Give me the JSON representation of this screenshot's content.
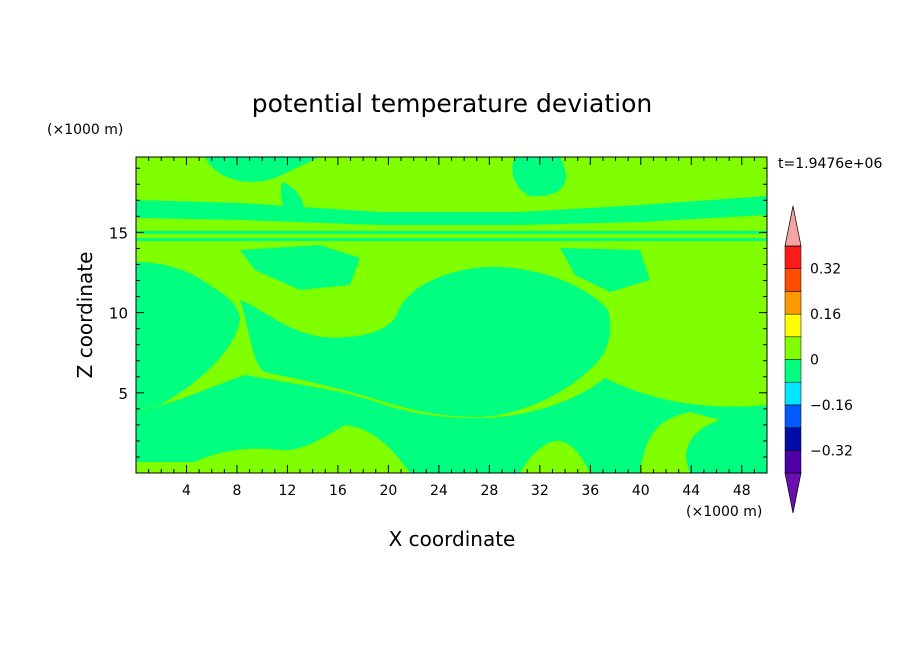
{
  "chart_data": {
    "type": "heatmap",
    "title": "potential temperature deviation",
    "xlabel": "X coordinate",
    "ylabel": "Z coordinate",
    "x_unit_label": "(×1000 m)",
    "y_unit_label": "(×1000 m)",
    "time_label": "t=1.9476e+06",
    "xlim": [
      0,
      50
    ],
    "ylim": [
      0,
      19.7
    ],
    "x_ticks": [
      "4",
      "8",
      "12",
      "16",
      "20",
      "24",
      "28",
      "32",
      "36",
      "40",
      "44",
      "48"
    ],
    "x_tick_values": [
      4,
      8,
      12,
      16,
      20,
      24,
      28,
      32,
      36,
      40,
      44,
      48
    ],
    "y_ticks": [
      "5",
      "10",
      "15"
    ],
    "y_tick_values": [
      5,
      10,
      15
    ],
    "colorbar": {
      "labels": [
        "0.32",
        "0.16",
        "0",
        "−0.16",
        "−0.32"
      ],
      "label_values": [
        0.32,
        0.16,
        0,
        -0.16,
        -0.32
      ],
      "levels": [
        -0.4,
        -0.32,
        -0.24,
        -0.16,
        -0.08,
        0,
        0.08,
        0.16,
        0.24,
        0.32,
        0.4
      ],
      "colors": [
        "#4d00a8",
        "#000ca8",
        "#005aff",
        "#00e6ff",
        "#00ff80",
        "#80ff00",
        "#ffff00",
        "#ff9900",
        "#ff4d00",
        "#ff1a1a"
      ],
      "over_color": "#f5a3a3",
      "under_color": "#6a0fb0"
    },
    "regions": {
      "positive_color": "#80ff00",
      "negative_color": "#00ff80"
    }
  }
}
